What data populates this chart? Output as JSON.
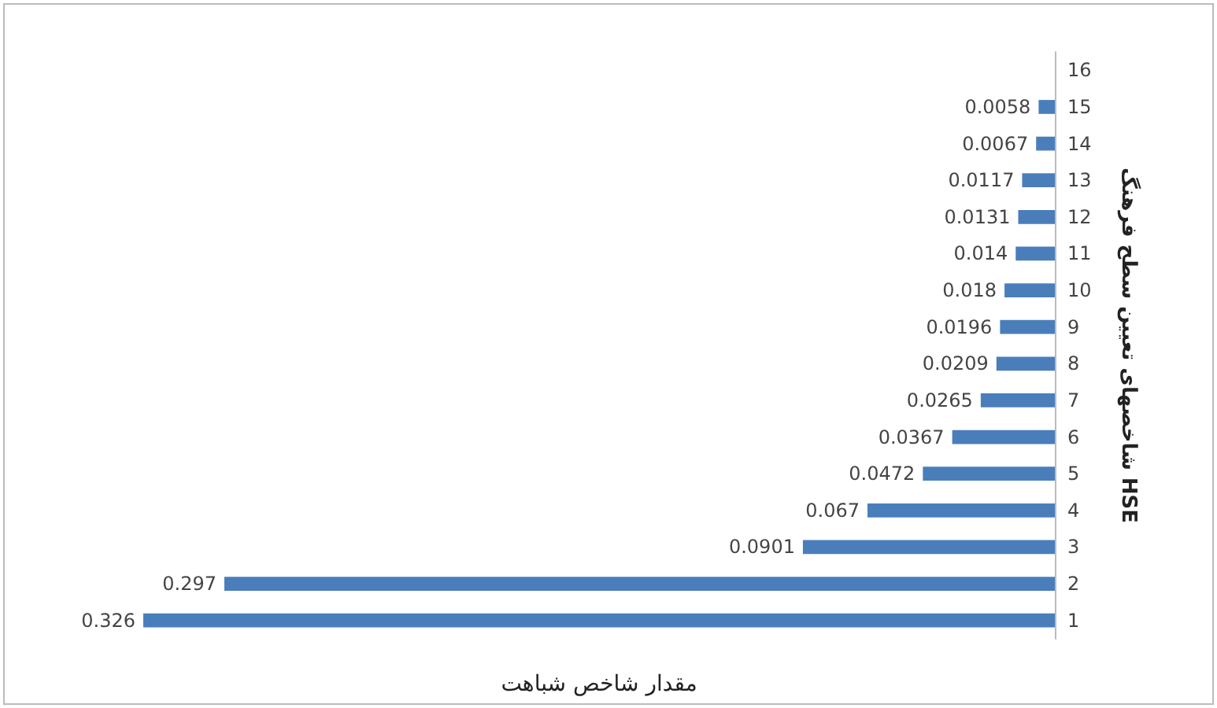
{
  "chart_data": {
    "type": "bar",
    "orientation": "horizontal",
    "xlabel": "مقدار شاخص شباهت",
    "ylabel": "شاخصهای تعیین سطح فرهنگ HSE",
    "categories": [
      "16",
      "15",
      "14",
      "13",
      "12",
      "11",
      "10",
      "9",
      "8",
      "7",
      "6",
      "5",
      "4",
      "3",
      "2",
      "1"
    ],
    "values": [
      null,
      0.0058,
      0.0067,
      0.0117,
      0.0131,
      0.014,
      0.018,
      0.0196,
      0.0209,
      0.0265,
      0.0367,
      0.0472,
      0.067,
      0.0901,
      0.297,
      0.326
    ],
    "color": "#4a7ebb",
    "data_labels": true,
    "xlim": [
      0.326,
      0
    ],
    "tick_labels": "y",
    "grid": false
  }
}
